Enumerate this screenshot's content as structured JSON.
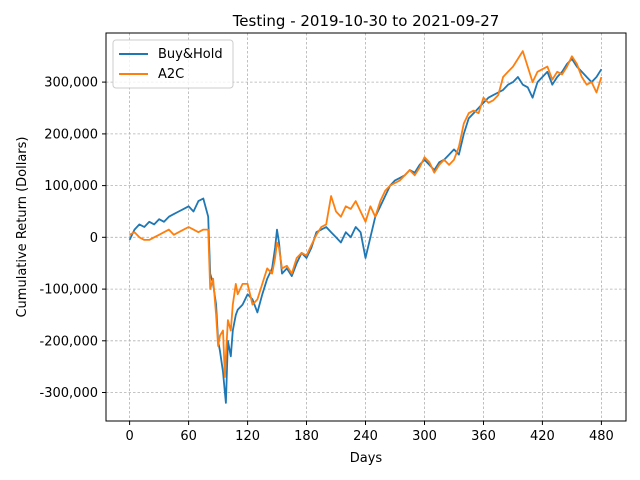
{
  "chart_data": {
    "type": "line",
    "title": "Testing - 2019-10-30 to 2021-09-27",
    "xlabel": "Days",
    "ylabel": "Cumulative Return (Dollars)",
    "xlim": [
      -24,
      505
    ],
    "ylim": [
      -355000,
      395000
    ],
    "xticks": [
      0,
      60,
      120,
      180,
      240,
      300,
      360,
      420,
      480
    ],
    "xtick_labels": [
      "0",
      "60",
      "120",
      "180",
      "240",
      "300",
      "360",
      "420",
      "480"
    ],
    "yticks": [
      -300000,
      -200000,
      -100000,
      0,
      100000,
      200000,
      300000
    ],
    "ytick_labels": [
      "-300,000",
      "-200,000",
      "-100,000",
      "0",
      "100,000",
      "200,000",
      "300,000"
    ],
    "grid": true,
    "legend_position": "top-left",
    "series": [
      {
        "name": "Buy&Hold",
        "color": "#1f77b4",
        "x": [
          0,
          5,
          10,
          15,
          20,
          25,
          30,
          35,
          40,
          45,
          50,
          55,
          60,
          65,
          70,
          75,
          80,
          82,
          85,
          88,
          90,
          92,
          95,
          97,
          98,
          100,
          103,
          105,
          108,
          110,
          115,
          120,
          125,
          130,
          135,
          140,
          145,
          148,
          150,
          152,
          155,
          160,
          165,
          170,
          175,
          180,
          185,
          190,
          195,
          200,
          205,
          210,
          215,
          220,
          225,
          230,
          235,
          240,
          245,
          250,
          255,
          260,
          265,
          270,
          275,
          280,
          285,
          290,
          295,
          300,
          305,
          310,
          315,
          320,
          325,
          330,
          335,
          340,
          345,
          350,
          355,
          360,
          365,
          370,
          375,
          380,
          385,
          390,
          395,
          400,
          405,
          410,
          415,
          420,
          425,
          430,
          435,
          440,
          445,
          450,
          455,
          460,
          465,
          470,
          475,
          480
        ],
        "y": [
          -5000,
          15000,
          25000,
          20000,
          30000,
          25000,
          35000,
          30000,
          40000,
          45000,
          50000,
          55000,
          60000,
          50000,
          70000,
          75000,
          40000,
          -70000,
          -90000,
          -130000,
          -200000,
          -220000,
          -260000,
          -300000,
          -320000,
          -200000,
          -230000,
          -180000,
          -150000,
          -140000,
          -130000,
          -110000,
          -120000,
          -145000,
          -110000,
          -80000,
          -60000,
          -20000,
          15000,
          -10000,
          -70000,
          -60000,
          -75000,
          -50000,
          -30000,
          -40000,
          -20000,
          10000,
          15000,
          20000,
          10000,
          0,
          -10000,
          10000,
          0,
          20000,
          10000,
          -40000,
          0,
          40000,
          60000,
          80000,
          100000,
          110000,
          115000,
          120000,
          130000,
          125000,
          140000,
          150000,
          140000,
          130000,
          145000,
          150000,
          160000,
          170000,
          160000,
          200000,
          230000,
          240000,
          250000,
          260000,
          270000,
          275000,
          280000,
          285000,
          295000,
          300000,
          310000,
          295000,
          290000,
          270000,
          300000,
          310000,
          320000,
          295000,
          310000,
          320000,
          335000,
          345000,
          330000,
          320000,
          310000,
          300000,
          310000,
          325000
        ]
      },
      {
        "name": "A2C",
        "color": "#ff7f0e",
        "x": [
          0,
          5,
          10,
          15,
          20,
          25,
          30,
          35,
          40,
          45,
          50,
          55,
          60,
          65,
          70,
          75,
          80,
          82,
          85,
          88,
          90,
          92,
          95,
          97,
          98,
          100,
          103,
          105,
          108,
          110,
          115,
          120,
          125,
          130,
          135,
          140,
          145,
          148,
          150,
          152,
          155,
          160,
          165,
          170,
          175,
          180,
          185,
          190,
          195,
          200,
          205,
          210,
          215,
          220,
          225,
          230,
          235,
          240,
          245,
          250,
          255,
          260,
          265,
          270,
          275,
          280,
          285,
          290,
          295,
          300,
          305,
          310,
          315,
          320,
          325,
          330,
          335,
          340,
          345,
          350,
          355,
          360,
          365,
          370,
          375,
          380,
          385,
          390,
          395,
          400,
          405,
          410,
          415,
          420,
          425,
          430,
          435,
          440,
          445,
          450,
          455,
          460,
          465,
          470,
          475,
          480
        ],
        "y": [
          5000,
          10000,
          0,
          -5000,
          -5000,
          0,
          5000,
          10000,
          15000,
          5000,
          10000,
          15000,
          20000,
          15000,
          10000,
          15000,
          15000,
          -100000,
          -80000,
          -150000,
          -210000,
          -190000,
          -180000,
          -270000,
          -230000,
          -160000,
          -180000,
          -130000,
          -90000,
          -110000,
          -90000,
          -90000,
          -130000,
          -120000,
          -90000,
          -60000,
          -70000,
          -40000,
          -10000,
          -20000,
          -60000,
          -55000,
          -70000,
          -40000,
          -30000,
          -35000,
          -15000,
          5000,
          20000,
          25000,
          80000,
          50000,
          40000,
          60000,
          55000,
          70000,
          50000,
          30000,
          60000,
          40000,
          70000,
          90000,
          100000,
          105000,
          110000,
          120000,
          130000,
          120000,
          135000,
          155000,
          145000,
          125000,
          140000,
          150000,
          140000,
          150000,
          175000,
          220000,
          240000,
          245000,
          240000,
          270000,
          260000,
          265000,
          275000,
          310000,
          320000,
          330000,
          345000,
          360000,
          330000,
          300000,
          320000,
          325000,
          330000,
          305000,
          320000,
          315000,
          330000,
          350000,
          335000,
          310000,
          295000,
          300000,
          280000,
          310000
        ]
      }
    ]
  }
}
